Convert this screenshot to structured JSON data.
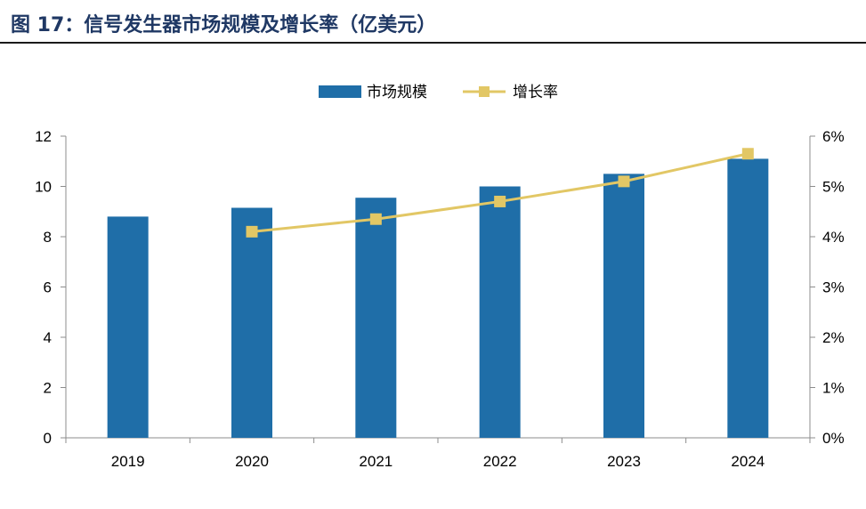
{
  "figure": {
    "title": "图 17：信号发生器市场规模及增长率（亿美元）"
  },
  "chart_data": {
    "type": "bar",
    "categories": [
      "2019",
      "2020",
      "2021",
      "2022",
      "2023",
      "2024"
    ],
    "series": [
      {
        "name": "市场规模",
        "type": "bar",
        "axis": "left",
        "color": "#1f6ea8",
        "values": [
          8.8,
          9.15,
          9.55,
          10.0,
          10.5,
          11.1
        ]
      },
      {
        "name": "增长率",
        "type": "line",
        "axis": "right",
        "color": "#e2c765",
        "values": [
          null,
          4.1,
          4.35,
          4.7,
          5.1,
          5.65
        ]
      }
    ],
    "y_left": {
      "min": 0,
      "max": 12,
      "ticks": [
        "0",
        "2",
        "4",
        "6",
        "8",
        "10",
        "12"
      ]
    },
    "y_right": {
      "min": 0,
      "max": 6,
      "ticks": [
        "0%",
        "1%",
        "2%",
        "3%",
        "4%",
        "5%",
        "6%"
      ]
    },
    "legend_position": "top-center",
    "grid": false
  }
}
